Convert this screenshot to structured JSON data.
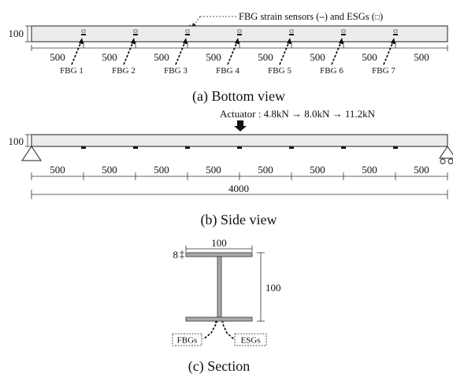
{
  "bottom_view": {
    "legend_prefix": "FBG strain sensors (",
    "legend_fbg_symbol": "–",
    "legend_mid": ") and ESGs (",
    "legend_esg_symbol": "□",
    "legend_suffix": ")",
    "depth_label": "100",
    "spacing_labels": [
      "500",
      "500",
      "500",
      "500",
      "500",
      "500",
      "500",
      "500"
    ],
    "sensors": [
      "FBG 1",
      "FBG 2",
      "FBG 3",
      "FBG 4",
      "FBG 5",
      "FBG 6",
      "FBG 7"
    ],
    "caption": "(a) Bottom view"
  },
  "side_view": {
    "actuator_label": "Actuator : 4.8kN",
    "load_step_2": "8.0kN",
    "load_step_3": "11.2kN",
    "depth_label": "100",
    "spacing_labels": [
      "500",
      "500",
      "500",
      "500",
      "500",
      "500",
      "500",
      "500"
    ],
    "total_length": "4000",
    "caption": "(b) Side view"
  },
  "section": {
    "flange_width": "100",
    "flange_thickness": "8",
    "height": "100",
    "fbg_label": "FBGs",
    "esg_label": "ESGs",
    "caption": "(c) Section"
  }
}
